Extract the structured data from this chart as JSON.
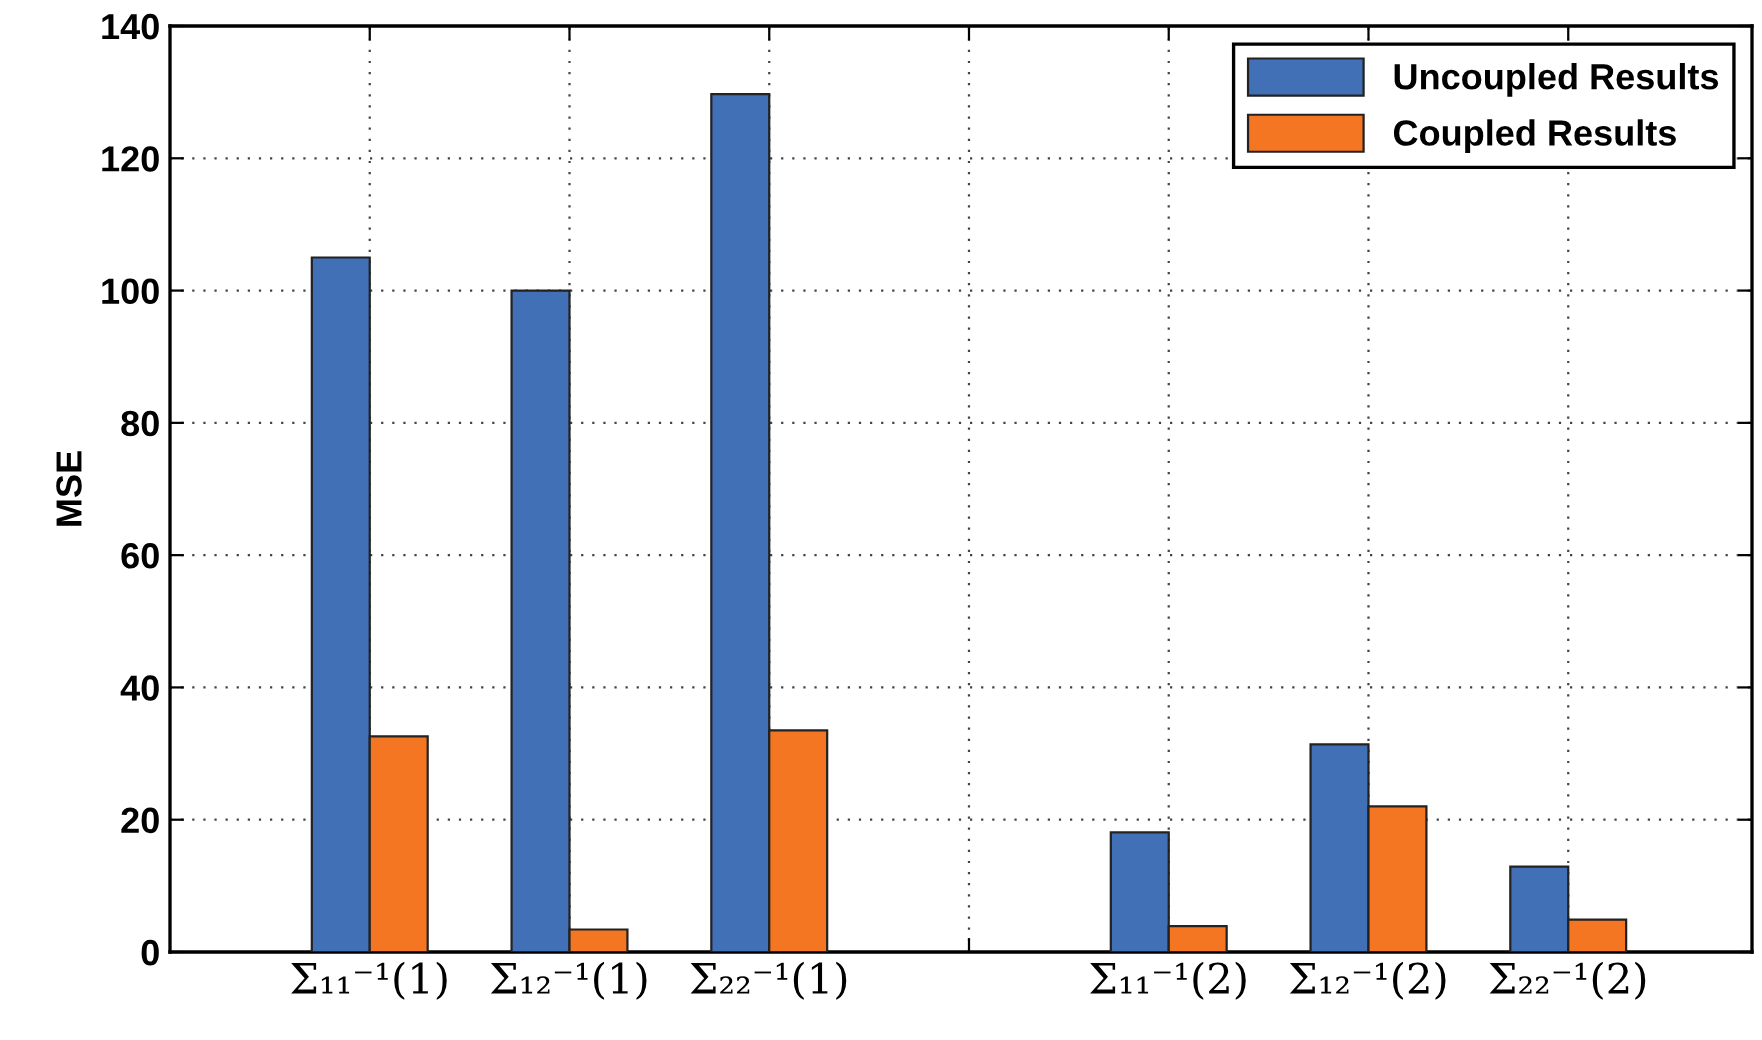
{
  "chart_data": {
    "type": "bar",
    "ylabel": "MSE",
    "categories": [
      "Σ₁₁⁻¹(1)",
      "Σ₁₂⁻¹(1)",
      "Σ₂₂⁻¹(1)",
      null,
      "Σ₁₁⁻¹(2)",
      "Σ₁₂⁻¹(2)",
      "Σ₂₂⁻¹(2)"
    ],
    "series": [
      {
        "name": "Uncoupled Results",
        "color": "#4170b6",
        "values": [
          105,
          100,
          129.7,
          null,
          18.1,
          31.4,
          12.9
        ]
      },
      {
        "name": "Coupled Results",
        "color": "#f47622",
        "values": [
          32.6,
          3.4,
          33.5,
          null,
          3.9,
          22,
          4.9
        ]
      }
    ],
    "ylim": [
      0,
      140
    ],
    "yticks": [
      0,
      20,
      40,
      60,
      80,
      100,
      120,
      140
    ],
    "grid": true,
    "legend": "top right"
  }
}
